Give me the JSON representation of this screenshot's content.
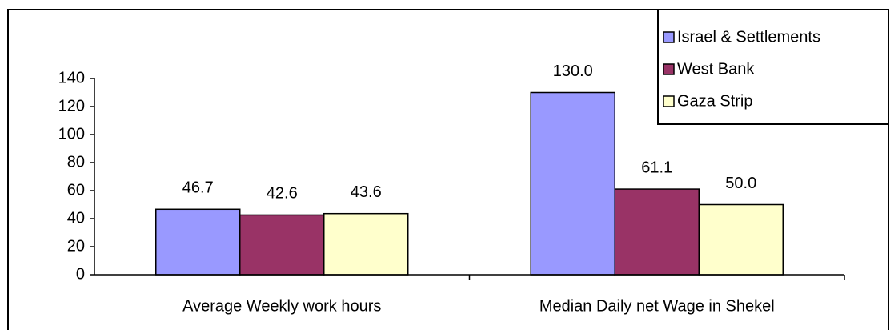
{
  "chart_data": {
    "type": "bar",
    "categories": [
      "Average Weekly work hours",
      "Median Daily net Wage in Shekel"
    ],
    "series": [
      {
        "name": "Israel & Settlements",
        "color": "#9999ff",
        "values": [
          46.7,
          130
        ],
        "value_labels": [
          "46.7",
          "130.0"
        ]
      },
      {
        "name": "West Bank",
        "color": "#993366",
        "values": [
          42.6,
          61.1
        ],
        "value_labels": [
          "42.6",
          "61.1"
        ]
      },
      {
        "name": "Gaza Strip",
        "color": "#ffffcc",
        "values": [
          43.6,
          50
        ],
        "value_labels": [
          "43.6",
          "50.0"
        ]
      }
    ],
    "ylim": [
      0,
      140
    ],
    "yticks": [
      0,
      20,
      40,
      60,
      80,
      100,
      120,
      140
    ],
    "grid": false,
    "legend": "top-right"
  }
}
